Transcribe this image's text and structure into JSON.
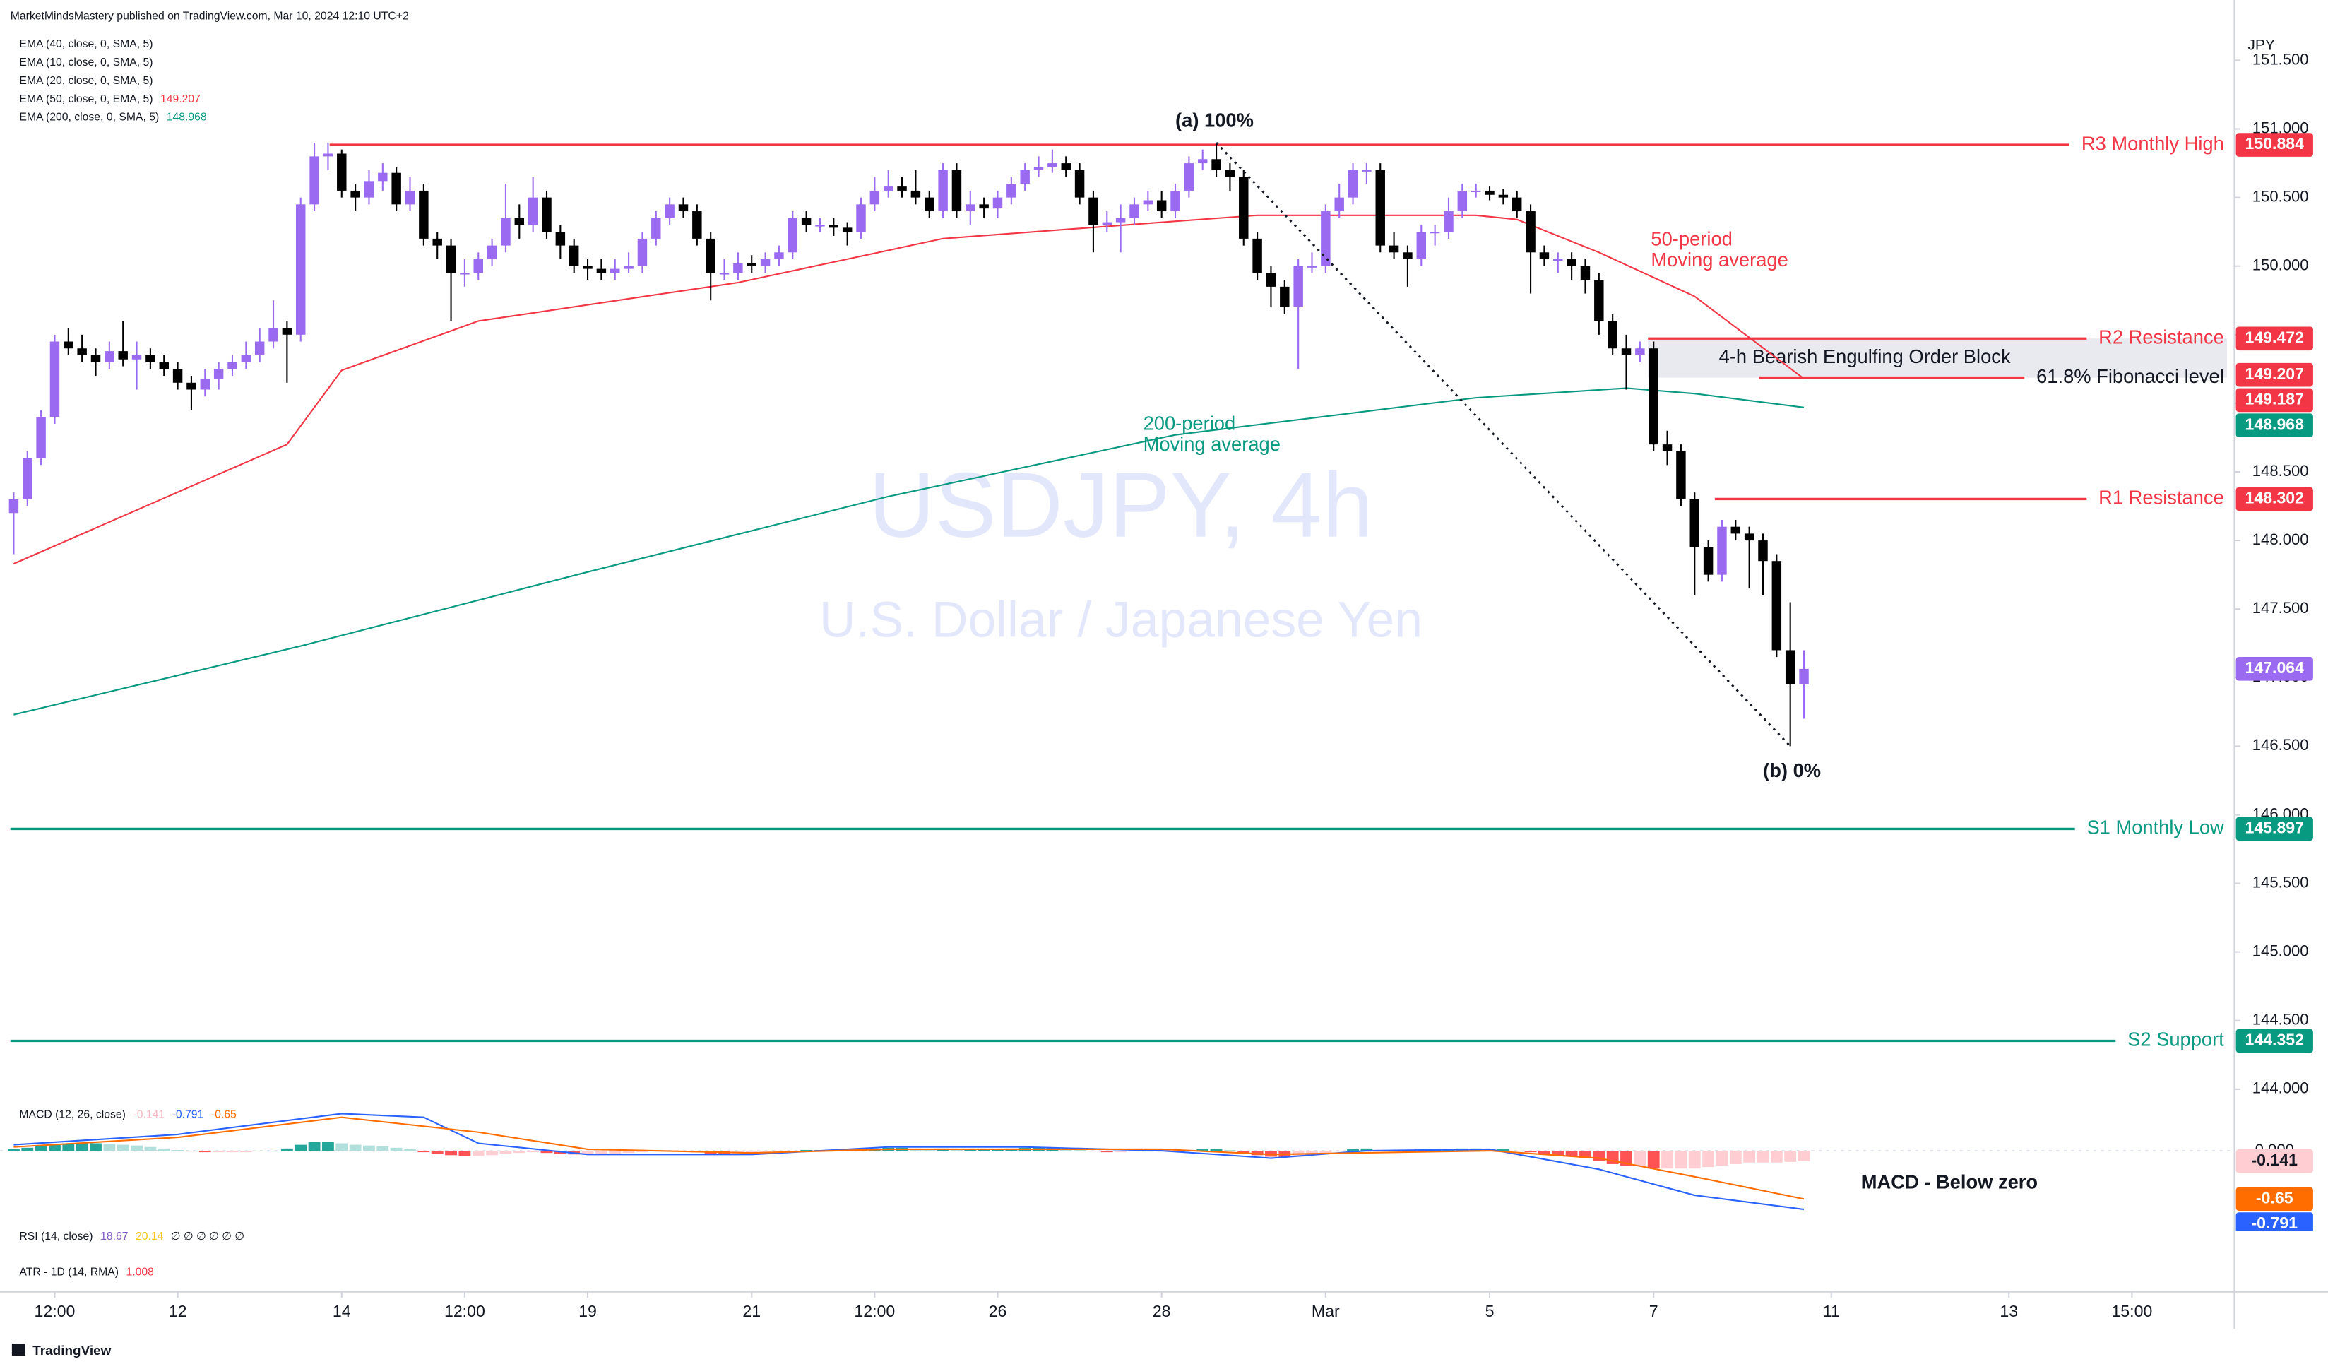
{
  "chart_data": {
    "type": "candlestick",
    "header": "MarketMindsMastery published on TradingView.com, Mar 10, 2024 12:10 UTC+2",
    "title": "USDJPY, 4h",
    "subtitle": "U.S. Dollar / Japanese Yen",
    "currency": "JPY",
    "footer": "TradingView",
    "up_color": "#9a6bf0",
    "down_color": "#000000",
    "xlim": [
      -1,
      162.5
    ],
    "xticks": [
      {
        "value": 3,
        "label": "12:00"
      },
      {
        "value": 12,
        "label": "12"
      },
      {
        "value": 24,
        "label": "14"
      },
      {
        "value": 33,
        "label": "12:00"
      },
      {
        "value": 42,
        "label": "19"
      },
      {
        "value": 54,
        "label": "21"
      },
      {
        "value": 63,
        "label": "12:00"
      },
      {
        "value": 72,
        "label": "26"
      },
      {
        "value": 84,
        "label": "28"
      },
      {
        "value": 96,
        "label": "Mar"
      },
      {
        "value": 108,
        "label": "5"
      },
      {
        "value": 120,
        "label": "7"
      },
      {
        "value": 133,
        "label": "11"
      },
      {
        "value": 146,
        "label": "13"
      },
      {
        "value": 155,
        "label": "15:00"
      }
    ],
    "ylim": [
      143.93,
      151.94
    ],
    "yticks": [
      {
        "value": 151.5,
        "label": "151.500"
      },
      {
        "value": 151,
        "label": "151.000"
      },
      {
        "value": 150.5,
        "label": "150.500"
      },
      {
        "value": 150,
        "label": "150.000"
      },
      {
        "value": 149.5,
        "label": "149.500"
      },
      {
        "value": 149,
        "label": "149.000"
      },
      {
        "value": 148.5,
        "label": "148.500"
      },
      {
        "value": 148,
        "label": "148.000"
      },
      {
        "value": 147.5,
        "label": "147.500"
      },
      {
        "value": 147,
        "label": "147.000"
      },
      {
        "value": 146.5,
        "label": "146.500"
      },
      {
        "value": 146,
        "label": "146.000"
      },
      {
        "value": 145.5,
        "label": "145.500"
      },
      {
        "value": 145,
        "label": "145.000"
      },
      {
        "value": 144.5,
        "label": "144.500"
      },
      {
        "value": 144,
        "label": "144.000"
      }
    ],
    "open": [
      148.2,
      148.3,
      148.6,
      148.9,
      149.45,
      149.4,
      149.35,
      149.3,
      149.38,
      149.32,
      149.35,
      149.3,
      149.25,
      149.15,
      149.1,
      149.18,
      149.25,
      149.3,
      149.35,
      149.45,
      149.55,
      149.5,
      150.45,
      150.8,
      150.82,
      150.55,
      150.5,
      150.62,
      150.68,
      150.45,
      150.55,
      150.2,
      150.15,
      149.95,
      149.95,
      150.05,
      150.15,
      150.35,
      150.3,
      150.5,
      150.25,
      150.15,
      150.0,
      149.98,
      149.95,
      149.98,
      150.0,
      150.2,
      150.35,
      150.45,
      150.4,
      150.2,
      149.95,
      149.95,
      150.02,
      150.0,
      150.05,
      150.1,
      150.35,
      150.3,
      150.3,
      150.28,
      150.25,
      150.45,
      150.55,
      150.58,
      150.55,
      150.5,
      150.4,
      150.7,
      150.4,
      150.45,
      150.42,
      150.5,
      150.6,
      150.7,
      150.72,
      150.75,
      150.7,
      150.5,
      150.3,
      150.32,
      150.35,
      150.45,
      150.48,
      150.4,
      150.55,
      150.75,
      150.78,
      150.7,
      150.65,
      150.2,
      149.95,
      149.85,
      149.7,
      150.0,
      150.0,
      150.4,
      150.5,
      150.7,
      150.7,
      150.15,
      150.1,
      150.05,
      150.25,
      150.25,
      150.4,
      150.55,
      150.55,
      150.52,
      150.5,
      150.4,
      150.1,
      150.05,
      150.05,
      150.0,
      149.9,
      149.6,
      149.4,
      149.35,
      149.4,
      148.7,
      148.65,
      148.3,
      147.95,
      147.75,
      148.1,
      148.05,
      148.0,
      147.85,
      147.2,
      146.95
    ],
    "high": [
      148.35,
      148.65,
      148.95,
      149.5,
      149.55,
      149.5,
      149.4,
      149.45,
      149.6,
      149.45,
      149.4,
      149.35,
      149.3,
      149.2,
      149.25,
      149.3,
      149.35,
      149.45,
      149.55,
      149.75,
      149.6,
      150.5,
      150.9,
      150.9,
      150.85,
      150.6,
      150.7,
      150.75,
      150.72,
      150.65,
      150.6,
      150.25,
      150.2,
      150.05,
      150.1,
      150.2,
      150.6,
      150.45,
      150.65,
      150.55,
      150.3,
      150.2,
      150.05,
      150.05,
      150.05,
      150.1,
      150.25,
      150.4,
      150.5,
      150.5,
      150.45,
      150.25,
      150.05,
      150.1,
      150.08,
      150.1,
      150.15,
      150.4,
      150.4,
      150.35,
      150.35,
      150.32,
      150.5,
      150.65,
      150.7,
      150.65,
      150.7,
      150.55,
      150.75,
      150.75,
      150.55,
      150.5,
      150.55,
      150.65,
      150.75,
      150.8,
      150.85,
      150.8,
      150.75,
      150.55,
      150.4,
      150.45,
      150.5,
      150.55,
      150.55,
      150.6,
      150.8,
      150.85,
      150.9,
      150.75,
      150.7,
      150.25,
      150.0,
      149.9,
      150.05,
      150.1,
      150.45,
      150.6,
      150.75,
      150.75,
      150.75,
      150.25,
      150.15,
      150.3,
      150.3,
      150.5,
      150.6,
      150.6,
      150.58,
      150.56,
      150.55,
      150.45,
      150.15,
      150.1,
      150.1,
      150.05,
      149.95,
      149.65,
      149.5,
      149.45,
      149.45,
      148.8,
      148.7,
      148.35,
      148.0,
      148.15,
      148.15,
      148.1,
      148.05,
      147.9,
      147.55,
      147.2
    ],
    "low": [
      147.9,
      148.25,
      148.55,
      148.85,
      149.35,
      149.3,
      149.2,
      149.25,
      149.27,
      149.1,
      149.25,
      149.2,
      149.1,
      148.95,
      149.05,
      149.1,
      149.2,
      149.25,
      149.3,
      149.4,
      149.15,
      149.45,
      150.4,
      150.7,
      150.5,
      150.4,
      150.45,
      150.55,
      150.4,
      150.4,
      150.15,
      150.05,
      149.6,
      149.85,
      149.9,
      150.0,
      150.1,
      150.2,
      150.25,
      150.2,
      150.05,
      149.95,
      149.9,
      149.9,
      149.9,
      149.95,
      149.95,
      150.15,
      150.3,
      150.35,
      150.15,
      149.75,
      149.9,
      149.9,
      149.95,
      149.95,
      150.0,
      150.05,
      150.25,
      150.25,
      150.22,
      150.15,
      150.2,
      150.4,
      150.5,
      150.5,
      150.45,
      150.35,
      150.35,
      150.35,
      150.3,
      150.35,
      150.35,
      150.45,
      150.55,
      150.65,
      150.68,
      150.65,
      150.45,
      150.1,
      150.25,
      150.1,
      150.3,
      150.4,
      150.35,
      150.35,
      150.5,
      150.7,
      150.65,
      150.55,
      150.15,
      149.9,
      149.7,
      149.65,
      149.25,
      149.95,
      149.95,
      150.35,
      150.45,
      150.6,
      150.1,
      150.05,
      149.85,
      150.0,
      150.15,
      150.2,
      150.35,
      150.5,
      150.48,
      150.45,
      150.35,
      149.8,
      150.0,
      149.95,
      149.9,
      149.8,
      149.5,
      149.35,
      149.1,
      149.3,
      148.65,
      148.55,
      148.25,
      147.6,
      147.7,
      147.7,
      148.0,
      147.65,
      147.6,
      147.15,
      146.5,
      146.7
    ],
    "close": [
      148.3,
      148.6,
      148.9,
      149.45,
      149.4,
      149.35,
      149.3,
      149.38,
      149.32,
      149.35,
      149.3,
      149.25,
      149.15,
      149.1,
      149.18,
      149.25,
      149.3,
      149.35,
      149.45,
      149.55,
      149.5,
      150.45,
      150.8,
      150.82,
      150.55,
      150.5,
      150.62,
      150.68,
      150.45,
      150.55,
      150.2,
      150.15,
      149.95,
      149.95,
      150.05,
      150.15,
      150.35,
      150.3,
      150.5,
      150.25,
      150.15,
      150.0,
      149.98,
      149.95,
      149.98,
      150.0,
      150.2,
      150.35,
      150.45,
      150.4,
      150.2,
      149.95,
      149.95,
      150.02,
      150.0,
      150.05,
      150.1,
      150.35,
      150.3,
      150.3,
      150.28,
      150.25,
      150.45,
      150.55,
      150.58,
      150.55,
      150.5,
      150.4,
      150.7,
      150.4,
      150.45,
      150.42,
      150.5,
      150.6,
      150.7,
      150.72,
      150.75,
      150.7,
      150.5,
      150.3,
      150.32,
      150.35,
      150.45,
      150.48,
      150.4,
      150.55,
      150.75,
      150.78,
      150.7,
      150.65,
      150.2,
      149.95,
      149.85,
      149.7,
      150.0,
      150.0,
      150.4,
      150.5,
      150.7,
      150.7,
      150.15,
      150.1,
      150.05,
      150.25,
      150.25,
      150.4,
      150.55,
      150.55,
      150.52,
      150.5,
      150.4,
      150.1,
      150.05,
      150.05,
      150.0,
      149.9,
      149.6,
      149.4,
      149.35,
      149.4,
      148.7,
      148.65,
      148.3,
      147.95,
      147.75,
      148.1,
      148.05,
      148.0,
      147.85,
      147.2,
      146.95,
      147.064
    ],
    "indicators": [
      {
        "label": "EMA (40, close, 0, SMA, 5)"
      },
      {
        "label": "EMA (10, close, 0, SMA, 5)"
      },
      {
        "label": "EMA (20, close, 0, SMA, 5)"
      },
      {
        "label": "EMA (50, close, 0, EMA, 5)",
        "value": 149.207,
        "color": "#f23645"
      },
      {
        "label": "EMA (200, close, 0, SMA, 5)",
        "value": 148.968,
        "color": "#089981"
      }
    ],
    "series": [
      {
        "color": "#f23645",
        "x": [
          0,
          20,
          24,
          34,
          53,
          68,
          84,
          91,
          107,
          110,
          116,
          123,
          131
        ],
        "values": [
          147.83,
          148.7,
          149.24,
          149.6,
          149.88,
          150.2,
          150.32,
          150.37,
          150.37,
          150.34,
          150.1,
          149.78,
          149.18
        ]
      },
      {
        "color": "#089981",
        "x": [
          0,
          21,
          42,
          64,
          85,
          107,
          118,
          123,
          131
        ],
        "values": [
          146.73,
          147.23,
          147.77,
          148.32,
          148.77,
          149.04,
          149.11,
          149.07,
          148.97
        ]
      }
    ],
    "levels": [
      {
        "label": "R3 Monthly High",
        "value": 150.884,
        "color": "#f23645"
      },
      {
        "label": "R2 Resistance",
        "value": 149.472,
        "color": "#f23645"
      },
      {
        "label": "61.8% Fibonacci level",
        "value": 149.187,
        "color": "#f23645",
        "text_color": "#131722"
      },
      {
        "label": "R1 Resistance",
        "value": 148.302,
        "color": "#f23645"
      },
      {
        "label": "S1 Monthly Low",
        "value": 145.897,
        "color": "#089981"
      },
      {
        "label": "S2 Support",
        "value": 144.352,
        "color": "#089981"
      }
    ],
    "price_labels": [
      {
        "value": 149.207,
        "color": "#f23645"
      },
      {
        "value": 148.968,
        "color": "#089981"
      },
      {
        "value": 147.064,
        "color": "#9a6bf0"
      }
    ],
    "zone_label": "4-h Bearish Engulfing Order Block",
    "annotations": [
      "(a) 100%",
      "(b) 0%",
      "50-period",
      "Moving average",
      "200-period",
      "Moving average"
    ],
    "macd": {
      "label": "MACD (12, 26, close)",
      "readouts": [
        {
          "value": -0.141,
          "color": "#f7b7c0"
        },
        {
          "value": -0.791,
          "color": "#2962ff"
        },
        {
          "value": -0.65,
          "color": "#ff6d00"
        }
      ],
      "ylim": [
        -1.06,
        0.6
      ],
      "yticks": [
        {
          "value": 0,
          "label": "0.000"
        }
      ],
      "hist_colors": [
        "#26a69a",
        "#b2dfdb",
        "#ff5252",
        "#ffcdd2"
      ],
      "histogram": [
        0.02,
        0.04,
        0.06,
        0.08,
        0.1,
        0.1,
        0.1,
        0.09,
        0.08,
        0.07,
        0.05,
        0.03,
        0.01,
        -0.01,
        -0.02,
        -0.02,
        -0.02,
        -0.02,
        -0.01,
        0.0,
        0.03,
        0.08,
        0.12,
        0.12,
        0.1,
        0.08,
        0.07,
        0.06,
        0.04,
        0.02,
        -0.02,
        -0.04,
        -0.06,
        -0.07,
        -0.07,
        -0.06,
        -0.04,
        -0.03,
        -0.02,
        -0.03,
        -0.04,
        -0.05,
        -0.05,
        -0.05,
        -0.04,
        -0.03,
        -0.02,
        -0.01,
        0.0,
        0.0,
        -0.02,
        -0.04,
        -0.05,
        -0.04,
        -0.04,
        -0.03,
        -0.02,
        0.0,
        0.01,
        0.01,
        0.01,
        0.01,
        0.02,
        0.03,
        0.04,
        0.04,
        0.03,
        0.02,
        0.03,
        0.02,
        0.02,
        0.02,
        0.02,
        0.03,
        0.04,
        0.04,
        0.04,
        0.03,
        0.01,
        -0.01,
        -0.02,
        -0.02,
        -0.01,
        0.0,
        -0.01,
        0.0,
        0.01,
        0.02,
        0.02,
        0.01,
        -0.03,
        -0.06,
        -0.08,
        -0.09,
        -0.08,
        -0.06,
        -0.03,
        0.0,
        0.02,
        0.03,
        0.01,
        0.0,
        -0.01,
        0.0,
        0.01,
        0.02,
        0.03,
        0.03,
        0.02,
        0.02,
        0.0,
        -0.02,
        -0.04,
        -0.06,
        -0.08,
        -0.1,
        -0.14,
        -0.18,
        -0.2,
        -0.2,
        -0.24,
        -0.24,
        -0.24,
        -0.24,
        -0.22,
        -0.2,
        -0.18,
        -0.16,
        -0.16,
        -0.16,
        -0.15,
        -0.141
      ],
      "series": [
        {
          "color": "#2962ff",
          "x": [
            0,
            12,
            24,
            30,
            34,
            42,
            54,
            64,
            74,
            84,
            92,
            99,
            108,
            116,
            123,
            131
          ],
          "values": [
            0.08,
            0.22,
            0.5,
            0.45,
            0.1,
            -0.05,
            -0.05,
            0.05,
            0.05,
            0.0,
            -0.1,
            0.0,
            0.02,
            -0.25,
            -0.6,
            -0.791
          ]
        },
        {
          "color": "#ff6d00",
          "x": [
            0,
            12,
            24,
            34,
            42,
            54,
            64,
            84,
            92,
            108,
            116,
            123,
            131
          ],
          "values": [
            0.05,
            0.18,
            0.45,
            0.25,
            0.02,
            -0.03,
            0.02,
            0.02,
            -0.05,
            0.0,
            -0.1,
            -0.35,
            -0.65
          ]
        }
      ],
      "badges": [
        {
          "value": -0.141,
          "color": "#ffcdd2",
          "text_color": "#131722"
        },
        {
          "value": -0.65,
          "color": "#ff6d00",
          "text_color": "#ffffff"
        },
        {
          "value": -0.791,
          "color": "#2962ff",
          "text_color": "#ffffff"
        }
      ],
      "annotation": "MACD - Below zero"
    },
    "rsi": {
      "label": "RSI (14, close)",
      "readouts": [
        {
          "value": 18.67,
          "color": "#7e57c2"
        },
        {
          "value": 20.14,
          "color": "#f5c518"
        }
      ],
      "empty": "∅ ∅ ∅ ∅ ∅ ∅"
    },
    "atr": {
      "label": "ATR - 1D (14, RMA)",
      "value": 1.008,
      "color": "#f23645"
    }
  }
}
